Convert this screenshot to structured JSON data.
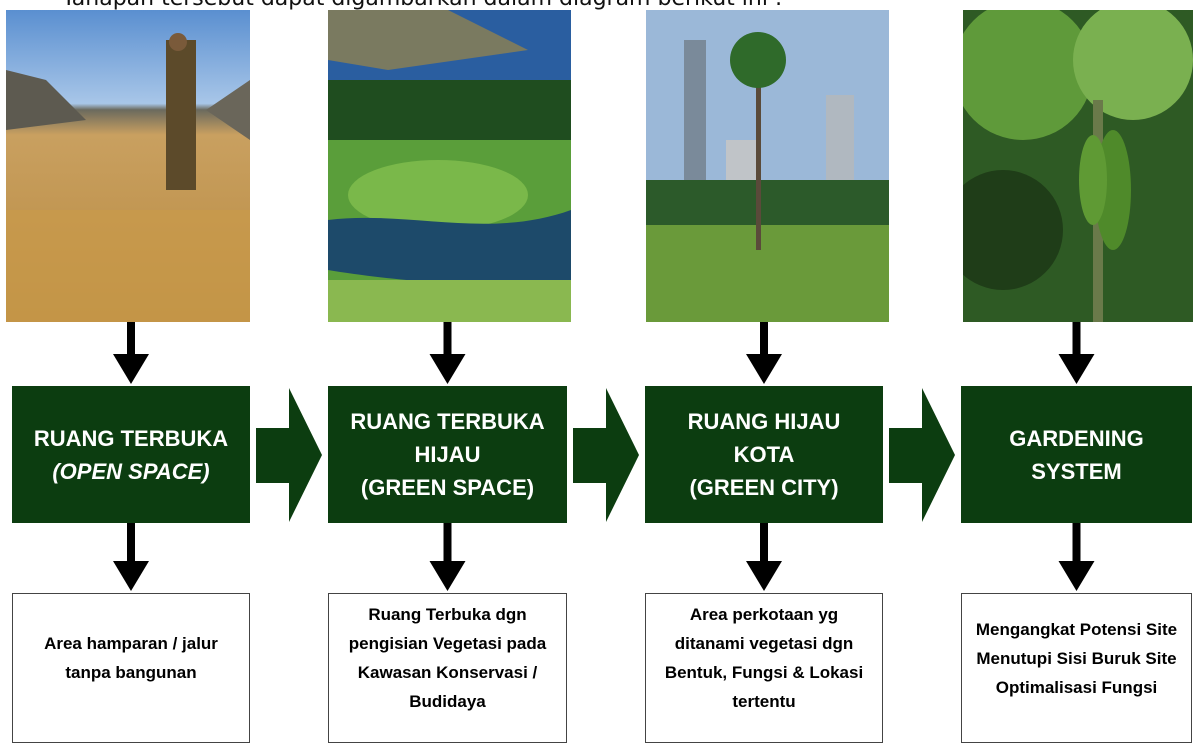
{
  "intro": "Tahapan tersebut dapat digambarkan dalam diagram berikut ini :",
  "columns": [
    {
      "title": [
        "RUANG TERBUKA",
        "(OPEN SPACE)"
      ],
      "description": [
        "Area hamparan / jalur",
        "tanpa bangunan"
      ]
    },
    {
      "title": [
        "RUANG TERBUKA",
        "HIJAU",
        "(GREEN SPACE)"
      ],
      "description": [
        "Ruang Terbuka dgn",
        "pengisian Vegetasi pada",
        "Kawasan Konservasi /",
        "Budidaya"
      ]
    },
    {
      "title": [
        "RUANG HIJAU",
        "KOTA",
        "(GREEN CITY)"
      ],
      "description": [
        "Area perkotaan yg",
        "ditanami vegetasi dgn",
        "Bentuk, Fungsi & Lokasi",
        "tertentu"
      ]
    },
    {
      "title": [
        "GARDENING",
        "SYSTEM"
      ],
      "description": [
        "Mengangkat Potensi Site",
        "Menutupi Sisi Buruk Site",
        "Optimalisasi Fungsi"
      ]
    }
  ]
}
